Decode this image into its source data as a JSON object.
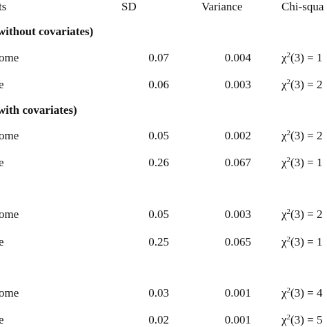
{
  "table": {
    "headers": {
      "effects": "ts",
      "sd": "SD",
      "variance": "Variance",
      "chi_square": "Chi-squa"
    },
    "sections": [
      {
        "title": "without covariates)",
        "rows": [
          {
            "label": "ome",
            "sd": "0.07",
            "variance": "0.004",
            "chi_prefix": "χ",
            "chi_sup": "2",
            "chi_rest": "(3) = 1"
          },
          {
            "label": "e",
            "sd": "0.06",
            "variance": "0.003",
            "chi_prefix": "χ",
            "chi_sup": "2",
            "chi_rest": "(3) = 2"
          }
        ]
      },
      {
        "title": "with covariates)",
        "rows": [
          {
            "label": "ome",
            "sd": "0.05",
            "variance": "0.002",
            "chi_prefix": "χ",
            "chi_sup": "2",
            "chi_rest": "(3) = 2"
          },
          {
            "label": "e",
            "sd": "0.26",
            "variance": "0.067",
            "chi_prefix": "χ",
            "chi_sup": "2",
            "chi_rest": "(3) = 1"
          }
        ]
      },
      {
        "title": "",
        "rows": [
          {
            "label": "ome",
            "sd": "0.05",
            "variance": "0.003",
            "chi_prefix": "χ",
            "chi_sup": "2",
            "chi_rest": "(3) = 2"
          },
          {
            "label": "e",
            "sd": "0.25",
            "variance": "0.065",
            "chi_prefix": "χ",
            "chi_sup": "2",
            "chi_rest": "(3) = 1"
          }
        ]
      },
      {
        "title": "",
        "rows": [
          {
            "label": "ome",
            "sd": "0.03",
            "variance": "0.001",
            "chi_prefix": "χ",
            "chi_sup": "2",
            "chi_rest": "(3) = 4"
          },
          {
            "label": "e",
            "sd": "0.02",
            "variance": "0.001",
            "chi_prefix": "χ",
            "chi_sup": "2",
            "chi_rest": "(3) = 5"
          }
        ]
      }
    ]
  }
}
